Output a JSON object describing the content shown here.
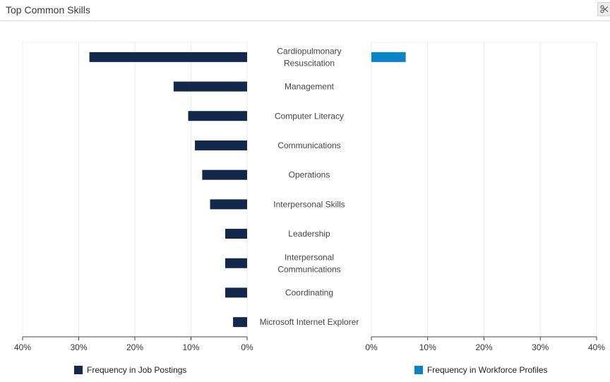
{
  "header": {
    "title": "Top Common Skills",
    "tool_icon": "scissors-icon"
  },
  "chart_data": {
    "type": "bar",
    "orientation": "horizontal-butterfly",
    "categories": [
      "Cardiopulmonary Resuscitation",
      "Management",
      "Computer Literacy",
      "Communications",
      "Operations",
      "Interpersonal Skills",
      "Leadership",
      "Interpersonal Communications",
      "Coordinating",
      "Microsoft Internet Explorer"
    ],
    "category_lines": [
      [
        "Cardiopulmonary",
        "Resuscitation"
      ],
      [
        "Management"
      ],
      [
        "Computer Literacy"
      ],
      [
        "Communications"
      ],
      [
        "Operations"
      ],
      [
        "Interpersonal Skills"
      ],
      [
        "Leadership"
      ],
      [
        "Interpersonal",
        "Communications"
      ],
      [
        "Coordinating"
      ],
      [
        "Microsoft Internet Explorer"
      ]
    ],
    "series": [
      {
        "name": "Frequency in Job Postings",
        "color": "#14284b",
        "side": "left",
        "values": [
          28.1,
          13.1,
          10.5,
          9.3,
          8.0,
          6.6,
          3.9,
          3.9,
          3.9,
          2.5
        ]
      },
      {
        "name": "Frequency in Workforce Profiles",
        "color": "#0a84c6",
        "side": "right",
        "values": [
          6.1,
          0,
          0,
          0,
          0,
          0,
          0,
          0,
          0,
          0
        ]
      }
    ],
    "left_axis": {
      "ticks": [
        "40%",
        "30%",
        "20%",
        "10%",
        "0%"
      ],
      "range": [
        0,
        40
      ]
    },
    "right_axis": {
      "ticks": [
        "0%",
        "10%",
        "20%",
        "30%",
        "40%"
      ],
      "range": [
        0,
        40
      ]
    },
    "grid": true,
    "legend_position": "bottom"
  }
}
